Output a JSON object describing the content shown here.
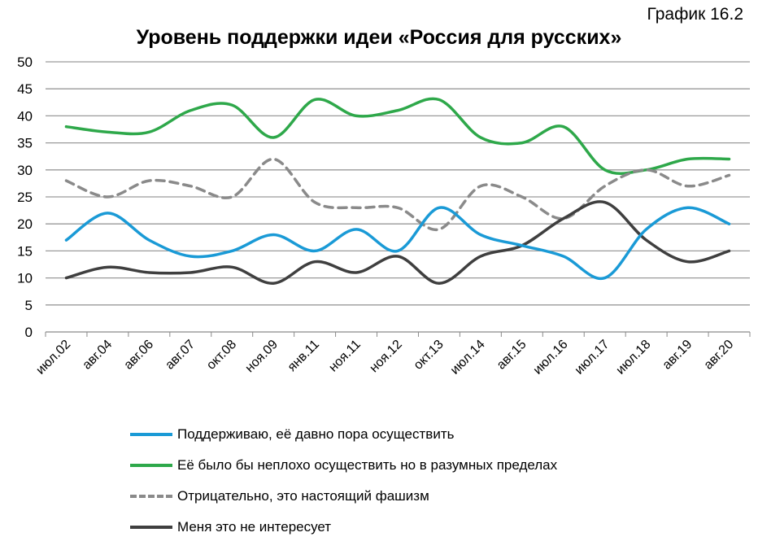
{
  "label": "График 16.2",
  "chart_data": {
    "type": "line",
    "title": "Уровень поддержки идеи «Россия для русских»",
    "xlabel": "",
    "ylabel": "",
    "ylim": [
      0,
      50
    ],
    "yticks": [
      0,
      5,
      10,
      15,
      20,
      25,
      30,
      35,
      40,
      45,
      50
    ],
    "grid": true,
    "legend_placement": "bottom",
    "categories": [
      "июл.02",
      "авг.04",
      "авг.06",
      "авг.07",
      "окт.08",
      "ноя.09",
      "янв.11",
      "ноя.11",
      "ноя.12",
      "окт.13",
      "июл.14",
      "авг.15",
      "июл.16",
      "июл.17",
      "июл.18",
      "авг.19",
      "авг.20"
    ],
    "series": [
      {
        "name": "Поддерживаю, её давно пора осуществить",
        "color": "#1a9ad6",
        "dash": false,
        "values": [
          17,
          22,
          17,
          14,
          15,
          18,
          15,
          19,
          15,
          23,
          18,
          16,
          14,
          10,
          19,
          23,
          20
        ]
      },
      {
        "name": "Её было бы неплохо осуществить но в разумных пределах",
        "color": "#2ea84a",
        "dash": false,
        "values": [
          38,
          37,
          37,
          41,
          42,
          36,
          43,
          40,
          41,
          43,
          36,
          35,
          38,
          30,
          30,
          32,
          32
        ]
      },
      {
        "name": "Отрицательно, это настоящий фашизм",
        "color": "#8a8a8a",
        "dash": true,
        "values": [
          28,
          25,
          28,
          27,
          25,
          32,
          24,
          23,
          23,
          19,
          27,
          25,
          21,
          27,
          30,
          27,
          29
        ]
      },
      {
        "name": "Меня это не интересует",
        "color": "#3f3f3f",
        "dash": false,
        "values": [
          10,
          12,
          11,
          11,
          12,
          9,
          13,
          11,
          14,
          9,
          14,
          16,
          21,
          24,
          17,
          13,
          15
        ]
      }
    ]
  }
}
